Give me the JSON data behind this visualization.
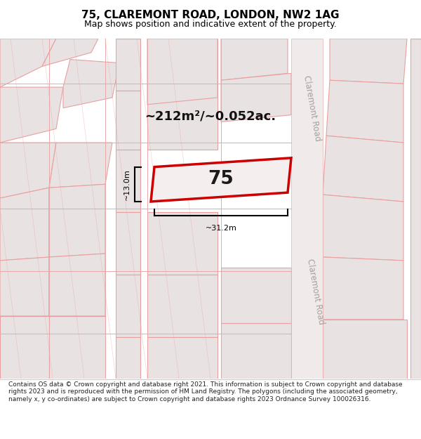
{
  "title": "75, CLAREMONT ROAD, LONDON, NW2 1AG",
  "subtitle": "Map shows position and indicative extent of the property.",
  "footer": "Contains OS data © Crown copyright and database right 2021. This information is subject to Crown copyright and database rights 2023 and is reproduced with the permission of HM Land Registry. The polygons (including the associated geometry, namely x, y co-ordinates) are subject to Crown copyright and database rights 2023 Ordnance Survey 100026316.",
  "map_bg": "#f7f2f2",
  "block_fill": "#e8e2e2",
  "block_edge": "#e8a0a0",
  "highlight_fill": "#f5eeee",
  "highlight_edge": "#cc0000",
  "road_label_color": "#aaa0a0",
  "area_text": "~212m²/~0.052ac.",
  "property_label": "75",
  "width_label": "~31.2m",
  "height_label": "~13.0m",
  "road_label_top": "Claremont Road",
  "road_label_bottom": "Claremont Road"
}
